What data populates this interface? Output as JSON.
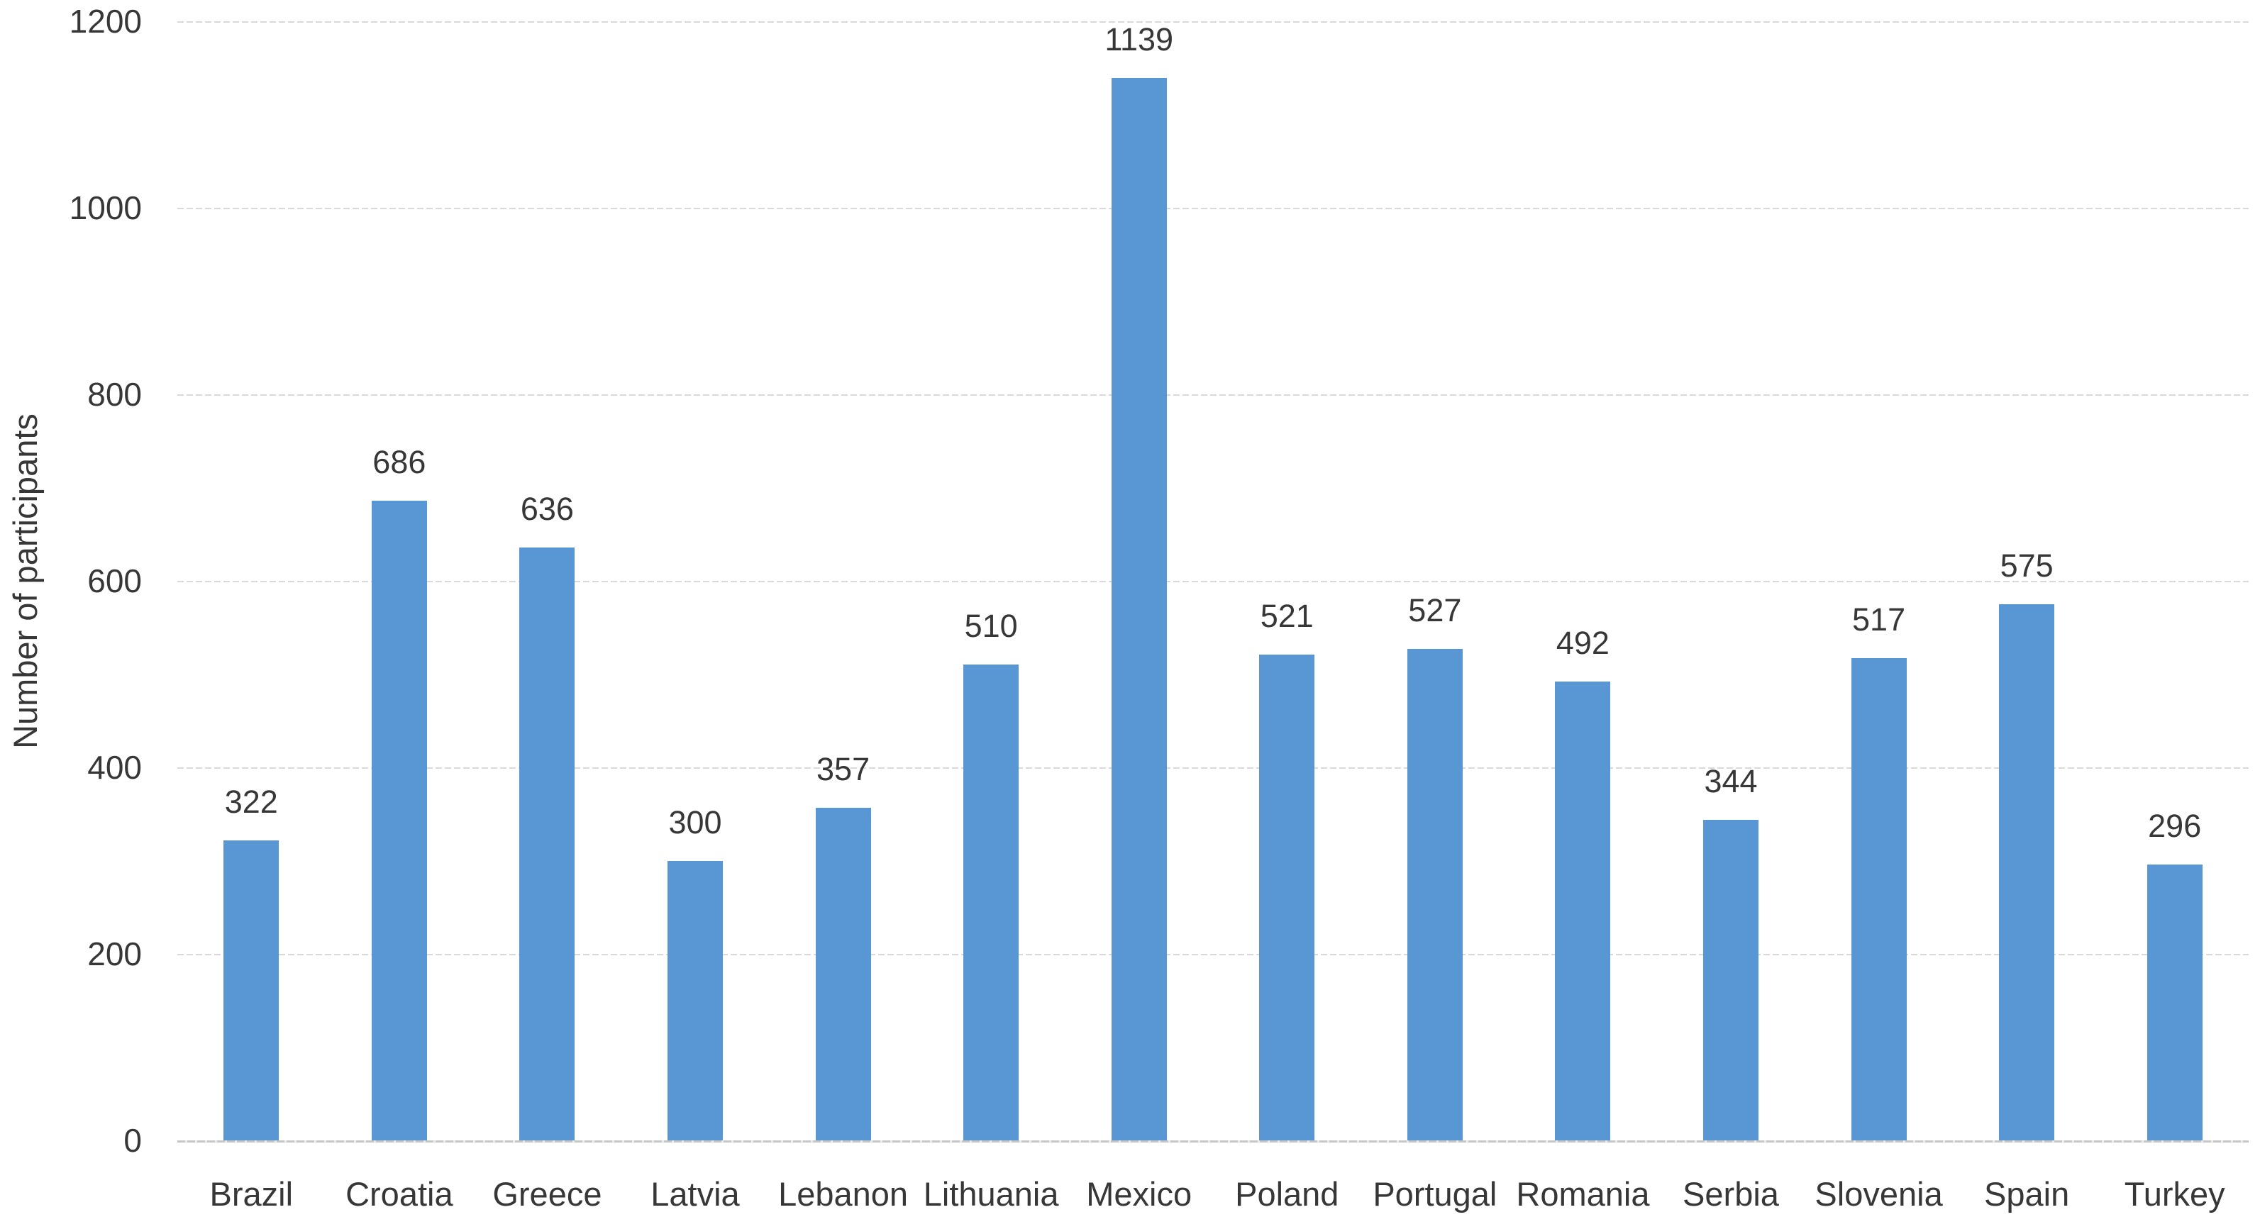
{
  "chart_data": {
    "type": "bar",
    "title": "",
    "xlabel": "",
    "ylabel": "Number of participants",
    "categories": [
      "Brazil",
      "Croatia",
      "Greece",
      "Latvia",
      "Lebanon",
      "Lithuania",
      "Mexico",
      "Poland",
      "Portugal",
      "Romania",
      "Serbia",
      "Slovenia",
      "Spain",
      "Turkey"
    ],
    "values": [
      322,
      686,
      636,
      300,
      357,
      510,
      1139,
      521,
      527,
      492,
      344,
      517,
      575,
      296
    ],
    "ylim": [
      0,
      1200
    ],
    "yticks": [
      0,
      200,
      400,
      600,
      800,
      1000,
      1200
    ],
    "grid": "horizontal-dashed",
    "legend": "none",
    "data_labels": "above-bars",
    "colors": {
      "bar": "#5897D3",
      "gridline": "#D9D9D9",
      "axis_line": "#C6C6C6",
      "text": "#373737",
      "background": "#FFFFFF"
    }
  }
}
